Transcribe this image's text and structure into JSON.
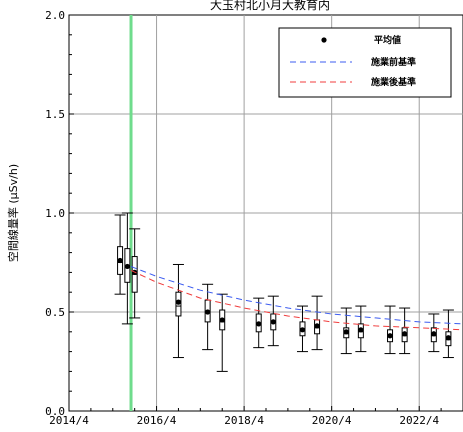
{
  "chart_data": {
    "type": "box",
    "title": "大玉村北小月大教育内",
    "ylabel": "空間線量率 (μSv/h)",
    "xlabel": "",
    "ylim": [
      0.0,
      2.0
    ],
    "y_ticks": [
      "0.0",
      "0.5",
      "1.0",
      "1.5",
      "2.0"
    ],
    "x_ticks": [
      "2014/4",
      "2016/4",
      "2018/4",
      "2020/4",
      "2022/4"
    ],
    "x_range": [
      "2014-04",
      "2023-04"
    ],
    "grid": true,
    "legend_position": "top-right",
    "legend": {
      "mean": "平均値",
      "pre_standard": "施業前基準",
      "post_standard": "施業後基準"
    },
    "colors": {
      "pre_standard": "#3c5cf0",
      "post_standard": "#f03c3c",
      "vertical_marker": "#6fdc8c",
      "box": "#000000",
      "grid": "#a0a0a0"
    },
    "vertical_marker_x": "2015-09",
    "boxes": [
      {
        "x": "2015-06",
        "min": 0.59,
        "q1": 0.69,
        "median": 0.75,
        "q3": 0.83,
        "max": 0.99,
        "mean": 0.76
      },
      {
        "x": "2015-08",
        "min": 0.44,
        "q1": 0.65,
        "median": 0.73,
        "q3": 0.82,
        "max": 1.0,
        "mean": 0.73
      },
      {
        "x": "2015-10",
        "min": 0.47,
        "q1": 0.6,
        "median": 0.69,
        "q3": 0.78,
        "max": 0.92,
        "mean": 0.7
      },
      {
        "x": "2016-10",
        "min": 0.27,
        "q1": 0.48,
        "median": 0.53,
        "q3": 0.6,
        "max": 0.74,
        "mean": 0.55
      },
      {
        "x": "2017-06",
        "min": 0.31,
        "q1": 0.45,
        "median": 0.5,
        "q3": 0.56,
        "max": 0.64,
        "mean": 0.5
      },
      {
        "x": "2017-10",
        "min": 0.2,
        "q1": 0.41,
        "median": 0.45,
        "q3": 0.51,
        "max": 0.59,
        "mean": 0.46
      },
      {
        "x": "2018-08",
        "min": 0.32,
        "q1": 0.4,
        "median": 0.44,
        "q3": 0.49,
        "max": 0.57,
        "mean": 0.44
      },
      {
        "x": "2018-12",
        "min": 0.33,
        "q1": 0.41,
        "median": 0.45,
        "q3": 0.49,
        "max": 0.58,
        "mean": 0.45
      },
      {
        "x": "2019-08",
        "min": 0.3,
        "q1": 0.38,
        "median": 0.41,
        "q3": 0.45,
        "max": 0.53,
        "mean": 0.41
      },
      {
        "x": "2019-12",
        "min": 0.31,
        "q1": 0.39,
        "median": 0.42,
        "q3": 0.46,
        "max": 0.58,
        "mean": 0.43
      },
      {
        "x": "2020-08",
        "min": 0.29,
        "q1": 0.37,
        "median": 0.39,
        "q3": 0.42,
        "max": 0.52,
        "mean": 0.4
      },
      {
        "x": "2020-12",
        "min": 0.3,
        "q1": 0.37,
        "median": 0.4,
        "q3": 0.44,
        "max": 0.53,
        "mean": 0.41
      },
      {
        "x": "2021-08",
        "min": 0.29,
        "q1": 0.35,
        "median": 0.38,
        "q3": 0.41,
        "max": 0.53,
        "mean": 0.38
      },
      {
        "x": "2021-12",
        "min": 0.29,
        "q1": 0.35,
        "median": 0.38,
        "q3": 0.42,
        "max": 0.52,
        "mean": 0.39
      },
      {
        "x": "2022-08",
        "min": 0.3,
        "q1": 0.35,
        "median": 0.38,
        "q3": 0.42,
        "max": 0.49,
        "mean": 0.39
      },
      {
        "x": "2022-12",
        "min": 0.27,
        "q1": 0.33,
        "median": 0.36,
        "q3": 0.4,
        "max": 0.51,
        "mean": 0.37
      }
    ],
    "pre_standard_line": [
      {
        "x": "2015-09",
        "y": 0.73
      },
      {
        "x": "2016-04",
        "y": 0.68
      },
      {
        "x": "2017-04",
        "y": 0.61
      },
      {
        "x": "2018-04",
        "y": 0.56
      },
      {
        "x": "2019-04",
        "y": 0.52
      },
      {
        "x": "2020-04",
        "y": 0.49
      },
      {
        "x": "2021-04",
        "y": 0.47
      },
      {
        "x": "2022-04",
        "y": 0.45
      },
      {
        "x": "2023-04",
        "y": 0.44
      }
    ],
    "post_standard_line": [
      {
        "x": "2015-09",
        "y": 0.71
      },
      {
        "x": "2016-04",
        "y": 0.65
      },
      {
        "x": "2017-04",
        "y": 0.57
      },
      {
        "x": "2018-04",
        "y": 0.52
      },
      {
        "x": "2019-04",
        "y": 0.48
      },
      {
        "x": "2020-04",
        "y": 0.45
      },
      {
        "x": "2021-04",
        "y": 0.43
      },
      {
        "x": "2022-04",
        "y": 0.42
      },
      {
        "x": "2023-04",
        "y": 0.41
      }
    ]
  }
}
